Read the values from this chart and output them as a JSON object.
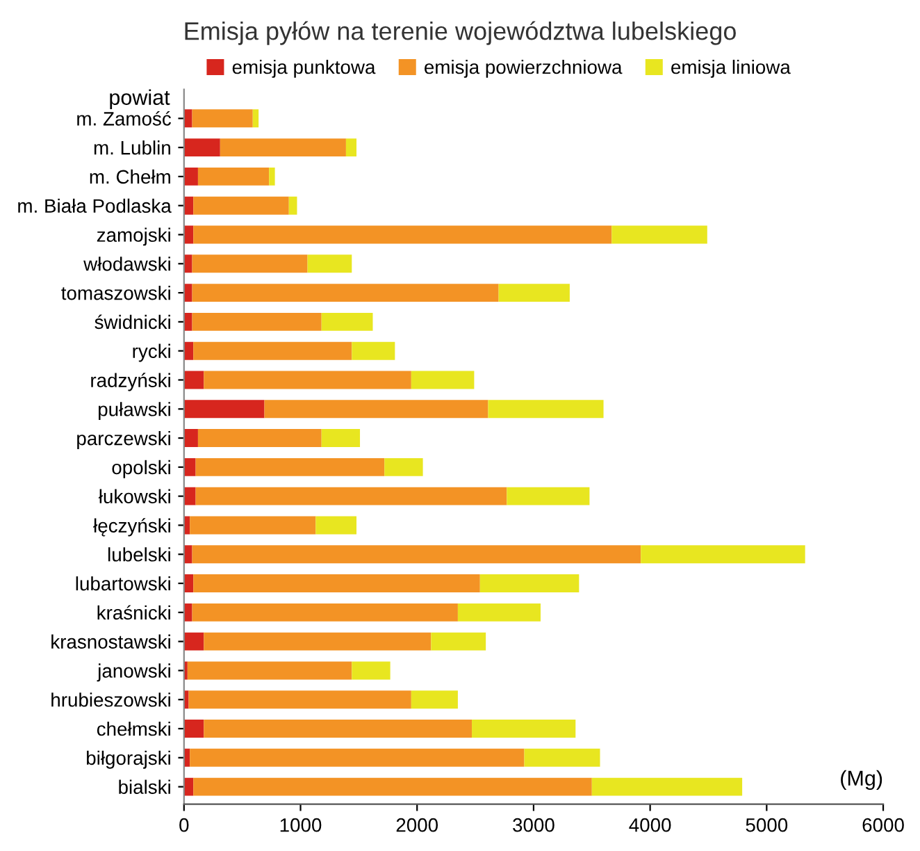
{
  "chart_data": {
    "type": "bar",
    "orientation": "horizontal",
    "stacked": true,
    "title": "Emisja pyłów na terenie województwa lubelskiego",
    "ylabel": "powiat",
    "xlabel": "(Mg)",
    "categories": [
      "m. Zamość",
      "m. Lublin",
      "m. Chełm",
      "m. Biała Podlaska",
      "zamojski",
      "włodawski",
      "tomaszowski",
      "świdnicki",
      "rycki",
      "radzyński",
      "puławski",
      "parczewski",
      "opolski",
      "łukowski",
      "łęczyński",
      "lubelski",
      "lubartowski",
      "kraśnicki",
      "krasnostawski",
      "janowski",
      "hrubieszowski",
      "chełmski",
      "biłgorajski",
      "bialski"
    ],
    "series": [
      {
        "name": "emisja punktowa",
        "color": "#d7261e",
        "values": [
          70,
          310,
          120,
          80,
          80,
          70,
          70,
          70,
          80,
          170,
          690,
          120,
          100,
          100,
          50,
          70,
          80,
          70,
          170,
          30,
          40,
          170,
          50,
          80
        ]
      },
      {
        "name": "emisja powierzchniowa",
        "color": "#f39325",
        "values": [
          520,
          1080,
          610,
          820,
          3590,
          990,
          2630,
          1110,
          1360,
          1780,
          1920,
          1060,
          1620,
          2670,
          1080,
          3850,
          2460,
          2280,
          1950,
          1410,
          1910,
          2300,
          2870,
          3420
        ]
      },
      {
        "name": "emisja liniowa",
        "color": "#e8e620",
        "values": [
          50,
          90,
          50,
          70,
          820,
          380,
          610,
          440,
          370,
          540,
          990,
          330,
          330,
          710,
          350,
          1410,
          850,
          710,
          470,
          330,
          400,
          890,
          650,
          1290
        ]
      }
    ],
    "xlim": [
      0,
      6000
    ],
    "xticks": [
      0,
      1000,
      2000,
      3000,
      4000,
      5000,
      6000
    ],
    "grid": false,
    "legend": "top"
  }
}
